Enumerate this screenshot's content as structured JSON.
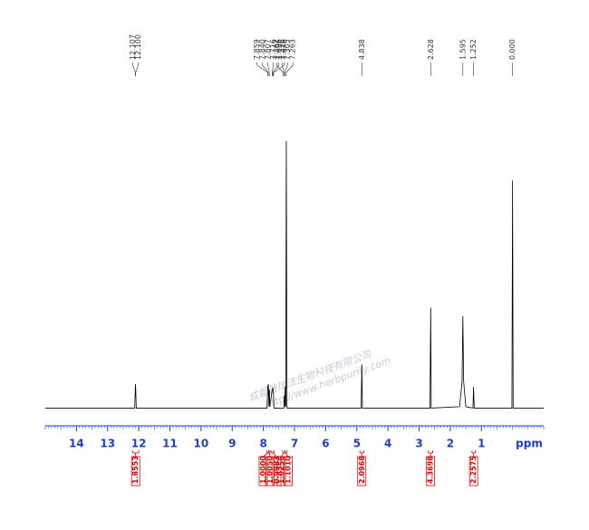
{
  "chart_data": {
    "type": "nmr",
    "x_label": "ppm",
    "xlim": [
      15,
      -1
    ],
    "xticks": [
      14,
      13,
      12,
      11,
      10,
      9,
      8,
      7,
      6,
      5,
      4,
      3,
      2,
      1
    ],
    "ylim": [
      0,
      100
    ],
    "color": "#000000",
    "axis_color": "#1f3fbf",
    "integral_color": "#d00000",
    "x": [
      15,
      12.13,
      12.107,
      12.1,
      12.08,
      7.88,
      7.859,
      7.84,
      7.82,
      7.807,
      7.79,
      7.716,
      7.696,
      7.676,
      7.66,
      7.34,
      7.326,
      7.31,
      7.302,
      7.28,
      7.263,
      7.24,
      4.86,
      4.838,
      4.82,
      2.65,
      2.628,
      2.61,
      1.7,
      1.62,
      1.595,
      1.57,
      1.5,
      1.27,
      1.252,
      1.23,
      0.02,
      0.0,
      -0.02,
      -1
    ],
    "values": [
      0.5,
      0.5,
      9,
      8,
      0.5,
      0.5,
      8,
      9,
      1,
      7,
      1,
      7,
      7.5,
      6,
      0.5,
      0.5,
      5,
      1,
      8,
      1,
      95,
      0.5,
      0.5,
      16,
      0.5,
      0.5,
      36,
      0.5,
      1,
      10,
      33,
      10,
      1,
      0.5,
      8,
      0.5,
      0.5,
      81,
      0.5,
      0.5
    ],
    "peak_labels": [
      {
        "value": 12.107,
        "label": "12.107"
      },
      {
        "value": 12.1,
        "label": "12.100"
      },
      {
        "value": 7.859,
        "label": "7.859"
      },
      {
        "value": 7.84,
        "label": "7.840"
      },
      {
        "value": 7.807,
        "label": "7.807"
      },
      {
        "value": 7.716,
        "label": "7.716"
      },
      {
        "value": 7.696,
        "label": "7.696"
      },
      {
        "value": 7.676,
        "label": "7.676"
      },
      {
        "value": 7.362,
        "label": "7.362"
      },
      {
        "value": 7.326,
        "label": "7.326"
      },
      {
        "value": 7.305,
        "label": "7.305"
      },
      {
        "value": 7.263,
        "label": "7.263"
      },
      {
        "value": 4.838,
        "label": "4.838"
      },
      {
        "value": 2.628,
        "label": "2.628"
      },
      {
        "value": 1.595,
        "label": "1.595"
      },
      {
        "value": 1.252,
        "label": "1.252"
      },
      {
        "value": 0.0,
        "label": "0.000"
      }
    ],
    "integrals": [
      {
        "value": 1.8553,
        "label": "1.8553",
        "range": [
          12.2,
          12.0
        ]
      },
      {
        "value": 1.0,
        "label": "1.0000",
        "range": [
          7.88,
          7.83
        ]
      },
      {
        "value": 1.005,
        "label": "1.0050",
        "range": [
          7.83,
          7.78
        ]
      },
      {
        "value": 0.9983,
        "label": "0.9983",
        "range": [
          7.73,
          7.66
        ]
      },
      {
        "value": 1.0256,
        "label": "1.0256",
        "range": [
          7.38,
          7.31
        ]
      },
      {
        "value": 1.101,
        "label": "1.1010",
        "range": [
          7.31,
          7.25
        ]
      },
      {
        "value": 2.0968,
        "label": "2.0968",
        "range": [
          4.9,
          4.78
        ]
      },
      {
        "value": 4.3698,
        "label": "4.3698",
        "range": [
          2.7,
          2.56
        ]
      },
      {
        "value": 2.2575,
        "label": "2.2575",
        "range": [
          1.3,
          1.2
        ]
      }
    ],
    "watermark": [
      "成都普瑞法生物科技有限公司",
      "http://www.herbpurify.com"
    ]
  }
}
